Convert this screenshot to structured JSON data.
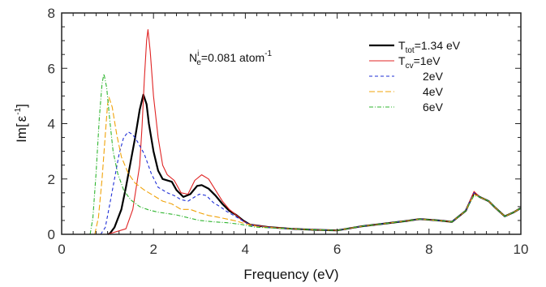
{
  "chart_data": {
    "type": "line",
    "xlabel": "Frequency (eV)",
    "ylabel_main": "Im[",
    "ylabel_eps": "ε",
    "ylabel_sup": "-1",
    "ylabel_close": "]",
    "xlim": [
      0,
      10
    ],
    "ylim": [
      0,
      8
    ],
    "x_ticks": [
      0,
      2,
      4,
      6,
      8,
      10
    ],
    "y_ticks": [
      0,
      2,
      4,
      6,
      8
    ],
    "annotation": {
      "main": "N",
      "sup": "i",
      "sub": "e",
      "rest": "=0.081 atom",
      "tail_sup": "-1"
    },
    "legend_position": "top-right",
    "series": [
      {
        "key": "ttot",
        "legend_main": "T",
        "legend_sub": "tot",
        "legend_rest": "=1.34 eV",
        "color": "#000000",
        "dash": "",
        "width": 2.2,
        "points": [
          [
            1.0,
            0
          ],
          [
            1.05,
            0.03
          ],
          [
            1.15,
            0.25
          ],
          [
            1.3,
            0.9
          ],
          [
            1.4,
            1.7
          ],
          [
            1.5,
            2.6
          ],
          [
            1.6,
            3.5
          ],
          [
            1.7,
            4.5
          ],
          [
            1.78,
            5.05
          ],
          [
            1.85,
            4.7
          ],
          [
            1.9,
            4.0
          ],
          [
            2.0,
            3.0
          ],
          [
            2.1,
            2.3
          ],
          [
            2.2,
            2.0
          ],
          [
            2.4,
            1.9
          ],
          [
            2.5,
            1.6
          ],
          [
            2.65,
            1.35
          ],
          [
            2.8,
            1.45
          ],
          [
            2.95,
            1.75
          ],
          [
            3.05,
            1.78
          ],
          [
            3.2,
            1.65
          ],
          [
            3.35,
            1.4
          ],
          [
            3.5,
            1.1
          ],
          [
            3.65,
            0.85
          ],
          [
            3.8,
            0.7
          ],
          [
            3.95,
            0.5
          ],
          [
            4.1,
            0.35
          ],
          [
            4.5,
            0.26
          ],
          [
            5.0,
            0.2
          ],
          [
            5.5,
            0.16
          ],
          [
            6.0,
            0.14
          ],
          [
            6.5,
            0.28
          ],
          [
            7.0,
            0.38
          ],
          [
            7.5,
            0.48
          ],
          [
            7.8,
            0.55
          ],
          [
            8.2,
            0.5
          ],
          [
            8.5,
            0.45
          ],
          [
            8.8,
            0.85
          ],
          [
            8.98,
            1.5
          ],
          [
            9.1,
            1.35
          ],
          [
            9.3,
            1.2
          ],
          [
            9.45,
            0.95
          ],
          [
            9.65,
            0.65
          ],
          [
            9.85,
            0.8
          ],
          [
            10.0,
            0.95
          ]
        ]
      },
      {
        "key": "tcv1",
        "legend_main": "T",
        "legend_sub": "cv",
        "legend_rest": "=1eV",
        "color": "#e02424",
        "dash": "",
        "width": 1.1,
        "points": [
          [
            1.0,
            0
          ],
          [
            1.4,
            0.2
          ],
          [
            1.55,
            0.9
          ],
          [
            1.7,
            2.5
          ],
          [
            1.75,
            3.9
          ],
          [
            1.8,
            5.6
          ],
          [
            1.85,
            7.0
          ],
          [
            1.88,
            7.4
          ],
          [
            1.93,
            6.6
          ],
          [
            2.0,
            5.0
          ],
          [
            2.1,
            3.5
          ],
          [
            2.2,
            2.5
          ],
          [
            2.3,
            2.15
          ],
          [
            2.45,
            1.95
          ],
          [
            2.6,
            1.5
          ],
          [
            2.75,
            1.45
          ],
          [
            2.9,
            1.95
          ],
          [
            3.05,
            2.15
          ],
          [
            3.2,
            2.0
          ],
          [
            3.35,
            1.6
          ],
          [
            3.5,
            1.2
          ],
          [
            3.65,
            0.9
          ],
          [
            3.8,
            0.7
          ],
          [
            3.95,
            0.48
          ],
          [
            4.1,
            0.35
          ],
          [
            4.5,
            0.26
          ],
          [
            5.0,
            0.2
          ],
          [
            5.5,
            0.16
          ],
          [
            6.0,
            0.14
          ],
          [
            6.5,
            0.28
          ],
          [
            7.0,
            0.38
          ],
          [
            7.5,
            0.48
          ],
          [
            7.8,
            0.55
          ],
          [
            8.2,
            0.5
          ],
          [
            8.5,
            0.45
          ],
          [
            8.8,
            0.85
          ],
          [
            8.98,
            1.55
          ],
          [
            9.1,
            1.35
          ],
          [
            9.3,
            1.2
          ],
          [
            9.45,
            0.95
          ],
          [
            9.65,
            0.65
          ],
          [
            9.85,
            0.8
          ],
          [
            10.0,
            0.95
          ]
        ]
      },
      {
        "key": "t2",
        "legend_main": "",
        "legend_sub": "",
        "legend_rest": "2eV",
        "color": "#1f2fd6",
        "dash": "4,3",
        "width": 1.1,
        "points": [
          [
            0.85,
            0
          ],
          [
            0.95,
            0.25
          ],
          [
            1.05,
            1.1
          ],
          [
            1.15,
            2.0
          ],
          [
            1.25,
            2.9
          ],
          [
            1.35,
            3.5
          ],
          [
            1.45,
            3.7
          ],
          [
            1.55,
            3.6
          ],
          [
            1.65,
            3.35
          ],
          [
            1.8,
            2.9
          ],
          [
            1.95,
            2.2
          ],
          [
            2.1,
            1.7
          ],
          [
            2.3,
            1.5
          ],
          [
            2.45,
            1.4
          ],
          [
            2.6,
            1.25
          ],
          [
            2.75,
            1.2
          ],
          [
            2.9,
            1.35
          ],
          [
            3.0,
            1.45
          ],
          [
            3.15,
            1.4
          ],
          [
            3.3,
            1.15
          ],
          [
            3.45,
            1.0
          ],
          [
            3.6,
            0.82
          ],
          [
            3.75,
            0.68
          ],
          [
            3.95,
            0.48
          ],
          [
            4.1,
            0.34
          ],
          [
            4.5,
            0.25
          ],
          [
            5.0,
            0.2
          ],
          [
            5.5,
            0.16
          ],
          [
            6.0,
            0.14
          ],
          [
            6.5,
            0.28
          ],
          [
            7.0,
            0.38
          ],
          [
            7.5,
            0.48
          ],
          [
            7.8,
            0.55
          ],
          [
            8.2,
            0.5
          ],
          [
            8.5,
            0.45
          ],
          [
            8.8,
            0.85
          ],
          [
            8.98,
            1.5
          ],
          [
            9.1,
            1.35
          ],
          [
            9.3,
            1.2
          ],
          [
            9.45,
            0.95
          ],
          [
            9.65,
            0.65
          ],
          [
            9.85,
            0.8
          ],
          [
            10.0,
            0.95
          ]
        ]
      },
      {
        "key": "t4",
        "legend_main": "",
        "legend_sub": "",
        "legend_rest": "4eV",
        "color": "#f0a30a",
        "dash": "7,3",
        "width": 1.1,
        "points": [
          [
            0.72,
            0
          ],
          [
            0.8,
            0.6
          ],
          [
            0.88,
            2.0
          ],
          [
            0.95,
            3.6
          ],
          [
            1.0,
            4.7
          ],
          [
            1.03,
            4.95
          ],
          [
            1.1,
            4.6
          ],
          [
            1.2,
            3.6
          ],
          [
            1.3,
            2.8
          ],
          [
            1.45,
            2.2
          ],
          [
            1.6,
            1.85
          ],
          [
            1.8,
            1.6
          ],
          [
            2.0,
            1.4
          ],
          [
            2.2,
            1.2
          ],
          [
            2.4,
            1.1
          ],
          [
            2.6,
            0.9
          ],
          [
            2.8,
            0.9
          ],
          [
            3.0,
            0.78
          ],
          [
            3.2,
            0.68
          ],
          [
            3.4,
            0.62
          ],
          [
            3.6,
            0.55
          ],
          [
            3.8,
            0.48
          ],
          [
            4.0,
            0.38
          ],
          [
            4.3,
            0.27
          ],
          [
            5.0,
            0.2
          ],
          [
            5.5,
            0.16
          ],
          [
            6.0,
            0.14
          ],
          [
            6.5,
            0.28
          ],
          [
            7.0,
            0.38
          ],
          [
            7.5,
            0.48
          ],
          [
            7.8,
            0.55
          ],
          [
            8.2,
            0.5
          ],
          [
            8.5,
            0.45
          ],
          [
            8.8,
            0.85
          ],
          [
            8.98,
            1.45
          ],
          [
            9.1,
            1.35
          ],
          [
            9.3,
            1.2
          ],
          [
            9.45,
            0.95
          ],
          [
            9.65,
            0.65
          ],
          [
            9.85,
            0.8
          ],
          [
            10.0,
            0.95
          ]
        ]
      },
      {
        "key": "t6",
        "legend_main": "",
        "legend_sub": "",
        "legend_rest": "6eV",
        "color": "#2fb52f",
        "dash": "5,2,1,2",
        "width": 1.1,
        "points": [
          [
            0.62,
            0
          ],
          [
            0.68,
            0.6
          ],
          [
            0.75,
            2.2
          ],
          [
            0.82,
            4.2
          ],
          [
            0.88,
            5.45
          ],
          [
            0.92,
            5.8
          ],
          [
            0.98,
            5.3
          ],
          [
            1.05,
            4.1
          ],
          [
            1.12,
            3.0
          ],
          [
            1.22,
            2.2
          ],
          [
            1.35,
            1.6
          ],
          [
            1.5,
            1.25
          ],
          [
            1.7,
            1.0
          ],
          [
            1.9,
            0.88
          ],
          [
            2.1,
            0.8
          ],
          [
            2.3,
            0.75
          ],
          [
            2.5,
            0.7
          ],
          [
            2.75,
            0.6
          ],
          [
            3.0,
            0.5
          ],
          [
            3.3,
            0.45
          ],
          [
            3.6,
            0.42
          ],
          [
            3.9,
            0.36
          ],
          [
            4.2,
            0.26
          ],
          [
            5.0,
            0.2
          ],
          [
            5.5,
            0.16
          ],
          [
            6.0,
            0.14
          ],
          [
            6.5,
            0.28
          ],
          [
            7.0,
            0.38
          ],
          [
            7.5,
            0.48
          ],
          [
            7.8,
            0.55
          ],
          [
            8.2,
            0.5
          ],
          [
            8.5,
            0.45
          ],
          [
            8.8,
            0.85
          ],
          [
            8.98,
            1.4
          ],
          [
            9.1,
            1.35
          ],
          [
            9.3,
            1.2
          ],
          [
            9.45,
            0.95
          ],
          [
            9.65,
            0.65
          ],
          [
            9.85,
            0.8
          ],
          [
            10.0,
            0.95
          ]
        ]
      }
    ]
  }
}
